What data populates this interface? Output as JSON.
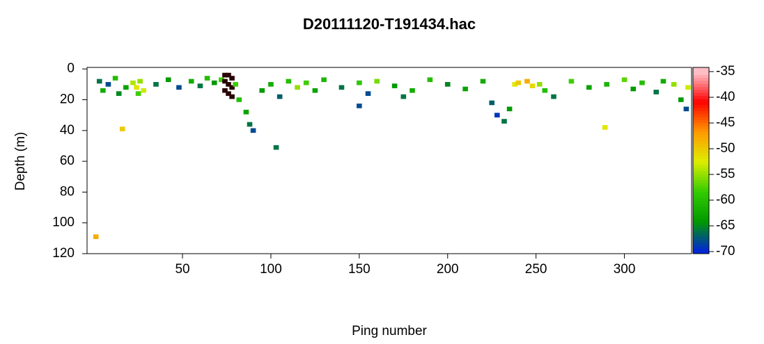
{
  "chart_data": {
    "type": "echogram",
    "title": "D20111120-T191434.hac",
    "xlabel": "Ping number",
    "ylabel": "Depth (m)",
    "xlim": [
      -4,
      338
    ],
    "xticks": [
      50,
      100,
      150,
      200,
      250,
      300
    ],
    "ylim": [
      -1,
      120
    ],
    "y_reversed": true,
    "yticks": [
      0,
      20,
      40,
      60,
      80,
      100,
      120
    ],
    "zlim": [
      -70,
      -35
    ],
    "zticks": [
      -35,
      -40,
      -45,
      -50,
      -55,
      -60,
      -65,
      -70
    ],
    "colorscale": [
      "#0022dd",
      "#009900",
      "#33cc00",
      "#ddee00",
      "#ff9900",
      "#ff0000",
      "#ffc8d0"
    ],
    "above_color": "#2a0505",
    "x": [
      3,
      5,
      8,
      12,
      14,
      18,
      22,
      24,
      26,
      28,
      25,
      35,
      42,
      48,
      55,
      60,
      64,
      68,
      72,
      74,
      76,
      78,
      74,
      76,
      78,
      74,
      76,
      78,
      80,
      82,
      86,
      88,
      90,
      95,
      100,
      105,
      110,
      115,
      120,
      125,
      130,
      140,
      150,
      155,
      160,
      170,
      180,
      190,
      200,
      210,
      220,
      225,
      228,
      232,
      235,
      238,
      240,
      245,
      248,
      252,
      255,
      260,
      270,
      280,
      290,
      300,
      305,
      310,
      318,
      322,
      328,
      332,
      335,
      336,
      16,
      103,
      289,
      1,
      150,
      175
    ],
    "y": [
      8,
      14,
      10,
      6,
      16,
      12,
      9,
      12,
      8,
      14,
      16,
      10,
      7,
      12,
      8,
      11,
      6,
      9,
      7,
      4,
      4,
      6,
      8,
      10,
      12,
      14,
      16,
      18,
      10,
      20,
      28,
      36,
      40,
      14,
      10,
      18,
      8,
      12,
      9,
      14,
      7,
      12,
      9,
      16,
      8,
      11,
      14,
      7,
      10,
      13,
      8,
      22,
      30,
      34,
      26,
      10,
      9,
      8,
      11,
      10,
      14,
      18,
      8,
      12,
      10,
      7,
      13,
      9,
      15,
      8,
      10,
      20,
      26,
      12,
      39,
      51,
      38,
      109,
      24,
      18
    ],
    "values": [
      -66,
      -62,
      -68,
      -60,
      -65,
      -63,
      -54,
      -52,
      -55,
      -53,
      -58,
      -66,
      -64,
      -68,
      -62,
      -66,
      -60,
      -64,
      -58,
      -30,
      -30,
      -30,
      -30,
      -30,
      -30,
      -30,
      -30,
      -30,
      -58,
      -60,
      -63,
      -66,
      -68,
      -64,
      -62,
      -67,
      -60,
      -55,
      -58,
      -63,
      -61,
      -66,
      -59,
      -68,
      -56,
      -64,
      -62,
      -60,
      -65,
      -63,
      -62,
      -67,
      -69,
      -66,
      -64,
      -52,
      -50,
      -48,
      -51,
      -55,
      -60,
      -66,
      -58,
      -63,
      -61,
      -57,
      -64,
      -60,
      -66,
      -62,
      -55,
      -64,
      -68,
      -53,
      -50,
      -66,
      -52,
      -48,
      -68,
      -66
    ]
  }
}
